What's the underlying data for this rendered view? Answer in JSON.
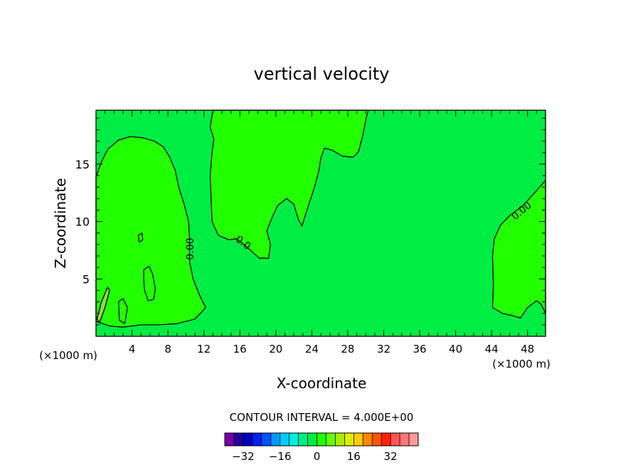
{
  "chart_data": {
    "type": "contour",
    "title": "vertical velocity",
    "xlabel": "X-coordinate",
    "ylabel": "Z-coordinate",
    "x_unit_left": "(×1000 m)",
    "x_unit_right": "(×1000 m)",
    "xlim": [
      0,
      50
    ],
    "ylim": [
      0,
      19.7
    ],
    "x_ticks": [
      4,
      8,
      12,
      16,
      20,
      24,
      28,
      32,
      36,
      40,
      44,
      48
    ],
    "y_ticks": [
      5,
      10,
      15
    ],
    "contour_interval_text": "CONTOUR INTERVAL = 4.000E+00",
    "contour_labels": [
      "0.00",
      "0.0",
      "0.00"
    ],
    "background_level_color": "#00ee44",
    "positive_region_color": "#22ff00",
    "light_region_color": "#88dd44",
    "colorbar": {
      "colors": [
        "#7700aa",
        "#220099",
        "#0000bb",
        "#0022ee",
        "#0055ff",
        "#0099ff",
        "#00ccff",
        "#00eedd",
        "#00ee88",
        "#00ee44",
        "#22ff00",
        "#66ff00",
        "#aaee00",
        "#ddee00",
        "#ffcc00",
        "#ff8800",
        "#ff5500",
        "#ff2200",
        "#ff5555",
        "#ff7777",
        "#ff9999"
      ],
      "tick_labels": [
        "−32",
        "−16",
        "0",
        "16",
        "32"
      ],
      "tick_values": [
        -32,
        -16,
        0,
        16,
        32
      ],
      "range": [
        -40,
        44
      ]
    },
    "positive_regions": [
      {
        "name": "left-lobe",
        "points": [
          [
            0,
            13.9
          ],
          [
            0.6,
            15.2
          ],
          [
            1.3,
            16.3
          ],
          [
            2.5,
            17.1
          ],
          [
            3.8,
            17.4
          ],
          [
            5.2,
            17.3
          ],
          [
            6.5,
            17
          ],
          [
            7.5,
            16.5
          ],
          [
            8.2,
            15.6
          ],
          [
            8.8,
            14.5
          ],
          [
            9.2,
            13
          ],
          [
            9.8,
            11.5
          ],
          [
            10.3,
            10
          ],
          [
            10.4,
            8.5
          ],
          [
            10.4,
            6.5
          ],
          [
            10.8,
            5
          ],
          [
            11.5,
            3.6
          ],
          [
            12.2,
            2.5
          ],
          [
            11,
            1.5
          ],
          [
            9,
            1.1
          ],
          [
            7,
            1
          ],
          [
            5,
            1
          ],
          [
            3,
            0.8
          ],
          [
            1.5,
            0.9
          ],
          [
            0,
            1.3
          ]
        ]
      },
      {
        "name": "upper-middle",
        "points": [
          [
            13,
            19.7
          ],
          [
            12.7,
            18.2
          ],
          [
            13.1,
            17.2
          ],
          [
            12.9,
            16
          ],
          [
            12.7,
            14
          ],
          [
            12.8,
            12
          ],
          [
            12.9,
            10
          ],
          [
            13.6,
            8.8
          ],
          [
            14.8,
            8.4
          ],
          [
            15.6,
            8.5
          ],
          [
            16.6,
            7.9
          ],
          [
            17.6,
            7.2
          ],
          [
            18.2,
            6.8
          ],
          [
            19.2,
            6.8
          ],
          [
            19.4,
            8
          ],
          [
            19,
            9.2
          ],
          [
            19.5,
            10.2
          ],
          [
            20.2,
            11.4
          ],
          [
            21.2,
            12
          ],
          [
            22,
            11.5
          ],
          [
            22.5,
            10.2
          ],
          [
            22.9,
            9.6
          ],
          [
            23.3,
            10.6
          ],
          [
            23.8,
            11.8
          ],
          [
            24.3,
            13
          ],
          [
            24.8,
            14.5
          ],
          [
            25,
            15.5
          ],
          [
            25.4,
            16.4
          ],
          [
            26.3,
            16.2
          ],
          [
            27.4,
            15.7
          ],
          [
            28.6,
            15.6
          ],
          [
            29.2,
            16.1
          ],
          [
            29.7,
            17.6
          ],
          [
            30.1,
            19.2
          ],
          [
            30.3,
            19.7
          ]
        ]
      },
      {
        "name": "right-lobe",
        "points": [
          [
            50,
            13.6
          ],
          [
            49,
            12.7
          ],
          [
            47.5,
            11.4
          ],
          [
            46,
            10.5
          ],
          [
            45,
            9.7
          ],
          [
            44.3,
            8.5
          ],
          [
            44.1,
            7
          ],
          [
            44.2,
            4.5
          ],
          [
            44.1,
            2.5
          ],
          [
            45.2,
            2
          ],
          [
            46.3,
            1.8
          ],
          [
            47.2,
            1.6
          ],
          [
            48,
            2.5
          ],
          [
            49,
            3.1
          ],
          [
            49.5,
            2.8
          ],
          [
            50,
            2
          ]
        ]
      },
      {
        "name": "blob-small-upper",
        "points": [
          [
            4.7,
            8.8
          ],
          [
            5.1,
            9
          ],
          [
            5.2,
            8.4
          ],
          [
            4.8,
            8.2
          ]
        ]
      },
      {
        "name": "blob-mid-left",
        "points": [
          [
            5.3,
            5.8
          ],
          [
            5.9,
            6.1
          ],
          [
            6.3,
            5.4
          ],
          [
            6.6,
            4.1
          ],
          [
            6.4,
            3.2
          ],
          [
            5.8,
            3.1
          ],
          [
            5.4,
            4
          ],
          [
            5.3,
            5
          ]
        ]
      },
      {
        "name": "blob-near-axis",
        "points": [
          [
            2.5,
            3
          ],
          [
            3,
            3.3
          ],
          [
            3.5,
            2.5
          ],
          [
            3.2,
            1.1
          ],
          [
            2.6,
            1.4
          ]
        ]
      }
    ],
    "light_regions": [
      {
        "name": "left-edge-streak",
        "points": [
          [
            0.1,
            1.5
          ],
          [
            0.6,
            3
          ],
          [
            1.3,
            4.3
          ],
          [
            1.5,
            4
          ],
          [
            1,
            2.5
          ],
          [
            0.4,
            1.2
          ]
        ]
      }
    ]
  }
}
